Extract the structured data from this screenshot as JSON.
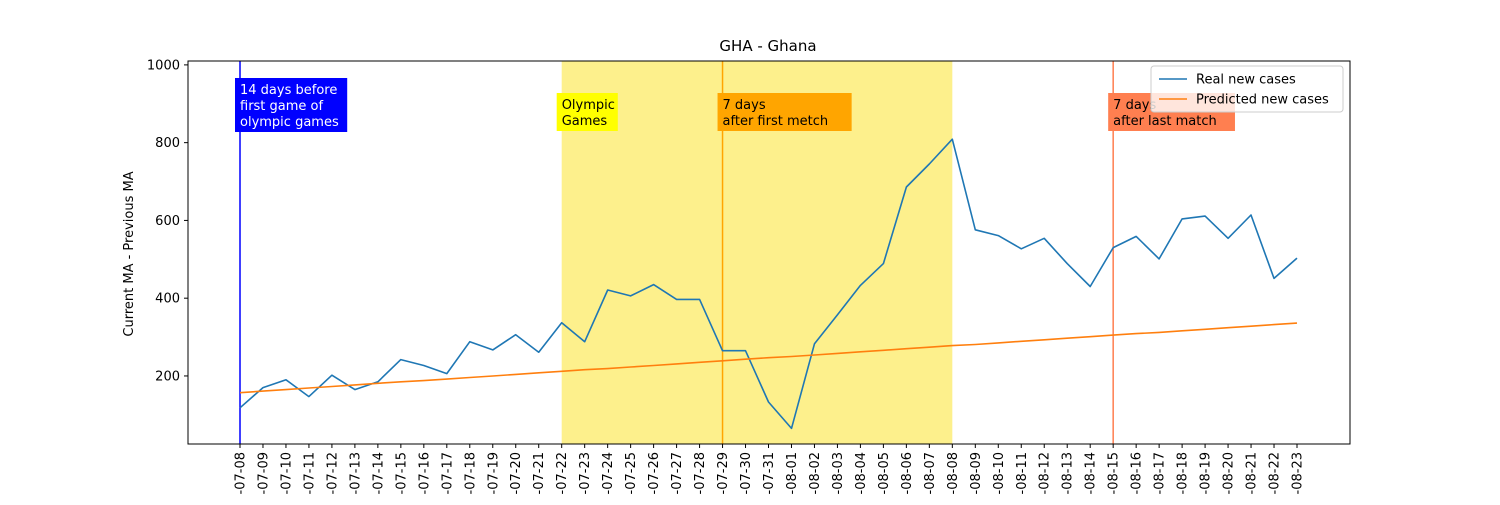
{
  "chart_data": {
    "type": "line",
    "title": "GHA - Ghana",
    "xlabel": "",
    "ylabel": "Current MA - Previous MA",
    "ylim": [
      25,
      1010
    ],
    "yticks": [
      200,
      400,
      600,
      800,
      1000
    ],
    "grid": false,
    "legend_position": "top-right",
    "x": [
      "07-08",
      "07-09",
      "07-10",
      "07-11",
      "07-12",
      "07-13",
      "07-14",
      "07-15",
      "07-16",
      "07-17",
      "07-18",
      "07-19",
      "07-20",
      "07-21",
      "07-22",
      "07-23",
      "07-24",
      "07-25",
      "07-26",
      "07-27",
      "07-28",
      "07-29",
      "07-30",
      "07-31",
      "08-01",
      "08-02",
      "08-03",
      "08-04",
      "08-05",
      "08-06",
      "08-07",
      "08-08",
      "08-09",
      "08-10",
      "08-11",
      "08-12",
      "08-13",
      "08-14",
      "08-15",
      "08-16",
      "08-17",
      "08-18",
      "08-19",
      "08-20",
      "08-21",
      "08-22",
      "08-23"
    ],
    "x_tick_labels": [
      "-07-08",
      "-07-09",
      "-07-10",
      "-07-11",
      "-07-12",
      "-07-13",
      "-07-14",
      "-07-15",
      "-07-16",
      "-07-17",
      "-07-18",
      "-07-19",
      "-07-20",
      "-07-21",
      "-07-22",
      "-07-23",
      "-07-24",
      "-07-25",
      "-07-26",
      "-07-27",
      "-07-28",
      "-07-29",
      "-07-30",
      "-07-31",
      "-08-01",
      "-08-02",
      "-08-03",
      "-08-04",
      "-08-05",
      "-08-06",
      "-08-07",
      "-08-08",
      "-08-09",
      "-08-10",
      "-08-11",
      "-08-12",
      "-08-13",
      "-08-14",
      "-08-15",
      "-08-16",
      "-08-17",
      "-08-18",
      "-08-19",
      "-08-20",
      "-08-21",
      "-08-22",
      "-08-23"
    ],
    "series": [
      {
        "name": "Real new cases",
        "color": "#1f77b4",
        "values": [
          118,
          170,
          190,
          147,
          202,
          165,
          185,
          242,
          227,
          206,
          288,
          267,
          306,
          261,
          337,
          288,
          421,
          406,
          435,
          397,
          397,
          265,
          265,
          133,
          65,
          283,
          357,
          433,
          489,
          686,
          745,
          809,
          576,
          561,
          527,
          554,
          489,
          430,
          530,
          559,
          501,
          604,
          611,
          554,
          614,
          451,
          503
        ]
      },
      {
        "name": "Predicted new cases",
        "color": "#ff7f0e",
        "values": [
          157,
          161,
          165,
          169,
          173,
          177,
          181,
          185,
          188,
          192,
          196,
          200,
          204,
          208,
          212,
          216,
          219,
          223,
          227,
          231,
          235,
          239,
          243,
          247,
          250,
          254,
          258,
          262,
          266,
          270,
          274,
          278,
          281,
          285,
          289,
          293,
          297,
          301,
          305,
          309,
          312,
          316,
          320,
          324,
          328,
          332,
          336
        ]
      }
    ],
    "shaded_region": {
      "from": "07-22",
      "to": "08-08",
      "color": "#fdee7f"
    },
    "markers": [
      {
        "x": "07-08",
        "color": "#0000ff",
        "label": [
          "14 days before",
          "first game of",
          "olympic games"
        ],
        "box_color": "#0000ff",
        "text_color": "#ffffff",
        "line": true
      },
      {
        "x": "07-22",
        "color": "#ffff00",
        "label": [
          "Olympic",
          "Games"
        ],
        "box_color": "#ffff00",
        "text_color": "#000000",
        "line": false
      },
      {
        "x": "07-29",
        "color": "#ffa500",
        "label": [
          "7 days",
          "after first metch"
        ],
        "box_color": "#ffa500",
        "text_color": "#000000",
        "line": true
      },
      {
        "x": "08-15",
        "color": "#ff7f50",
        "label": [
          "7 days",
          "after last match"
        ],
        "box_color": "#ff7f50",
        "text_color": "#000000",
        "line": true
      }
    ]
  }
}
